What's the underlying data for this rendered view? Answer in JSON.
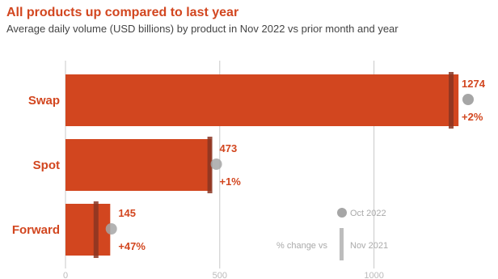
{
  "header": {
    "title": "All products up compared to last year",
    "subtitle": "Average daily volume (USD billions) by product in Nov 2022 vs prior month and year"
  },
  "colors": {
    "bar": "#d2461f",
    "prior_year_marker": "#8a3522",
    "prior_month_marker": "#a6a6a6",
    "grid": "#c8c8c8",
    "legend_bar": "#bdbdbd"
  },
  "chart_data": {
    "type": "bar",
    "orientation": "horizontal",
    "title": "All products up compared to last year",
    "subtitle": "Average daily volume (USD billions) by product in Nov 2022 vs prior month and year",
    "categories": [
      "Swap",
      "Spot",
      "Forward"
    ],
    "values": [
      1274,
      473,
      145
    ],
    "value_labels": [
      "1274",
      "473",
      "145"
    ],
    "pct_change_labels": [
      "+2%",
      "+1%",
      "+47%"
    ],
    "oct_2022": [
      1250,
      468,
      125
    ],
    "nov_2021": [
      1250,
      468,
      99
    ],
    "xlim": [
      0,
      1350
    ],
    "xticks": [
      0,
      500,
      1000
    ],
    "grid": true,
    "legend": {
      "dot_label": "Oct 2022",
      "change_label": "% change vs",
      "bar_label": "Nov 2021",
      "placement": "bottom-right"
    }
  }
}
